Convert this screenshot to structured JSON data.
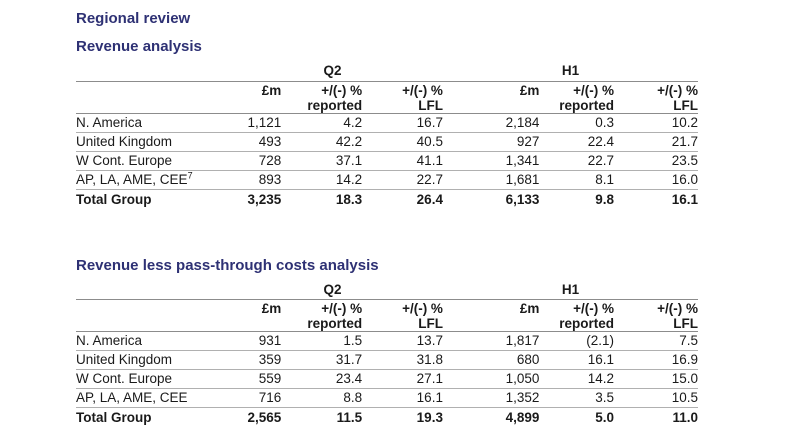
{
  "page": {
    "section_title": "Regional review",
    "table1_title": "Revenue analysis",
    "table2_title": "Revenue less pass-through costs analysis",
    "heading_color": "#2e3174"
  },
  "columns": {
    "group1": "Q2",
    "group2": "H1",
    "sub": [
      {
        "l1": "£m",
        "l2": ""
      },
      {
        "l1": "+/(-) %",
        "l2": "reported"
      },
      {
        "l1": "+/(-) %",
        "l2": "LFL"
      },
      {
        "l1": "£m",
        "l2": ""
      },
      {
        "l1": "+/(-) %",
        "l2": "reported"
      },
      {
        "l1": "+/(-) %",
        "l2": "LFL"
      }
    ]
  },
  "revenue_analysis": {
    "rows": [
      {
        "label": "N. America",
        "sup": "",
        "v": [
          "1,121",
          "4.2",
          "16.7",
          "2,184",
          "0.3",
          "10.2"
        ]
      },
      {
        "label": "United Kingdom",
        "sup": "",
        "v": [
          "493",
          "42.2",
          "40.5",
          "927",
          "22.4",
          "21.7"
        ]
      },
      {
        "label": "W Cont. Europe",
        "sup": "",
        "v": [
          "728",
          "37.1",
          "41.1",
          "1,341",
          "22.7",
          "23.5"
        ]
      },
      {
        "label": "AP, LA, AME, CEE",
        "sup": "7",
        "v": [
          "893",
          "14.2",
          "22.7",
          "1,681",
          "8.1",
          "16.0"
        ]
      },
      {
        "label": "Total Group",
        "sup": "",
        "v": [
          "3,235",
          "18.3",
          "26.4",
          "6,133",
          "9.8",
          "16.1"
        ]
      }
    ]
  },
  "revenue_less_pass_through": {
    "rows": [
      {
        "label": "N. America",
        "v": [
          "931",
          "1.5",
          "13.7",
          "1,817",
          "(2.1)",
          "7.5"
        ]
      },
      {
        "label": "United Kingdom",
        "v": [
          "359",
          "31.7",
          "31.8",
          "680",
          "16.1",
          "16.9"
        ]
      },
      {
        "label": "W Cont. Europe",
        "v": [
          "559",
          "23.4",
          "27.1",
          "1,050",
          "14.2",
          "15.0"
        ]
      },
      {
        "label": "AP, LA, AME, CEE",
        "v": [
          "716",
          "8.8",
          "16.1",
          "1,352",
          "3.5",
          "10.5"
        ]
      },
      {
        "label": "Total Group",
        "v": [
          "2,565",
          "11.5",
          "19.3",
          "4,899",
          "5.0",
          "11.0"
        ]
      }
    ]
  }
}
